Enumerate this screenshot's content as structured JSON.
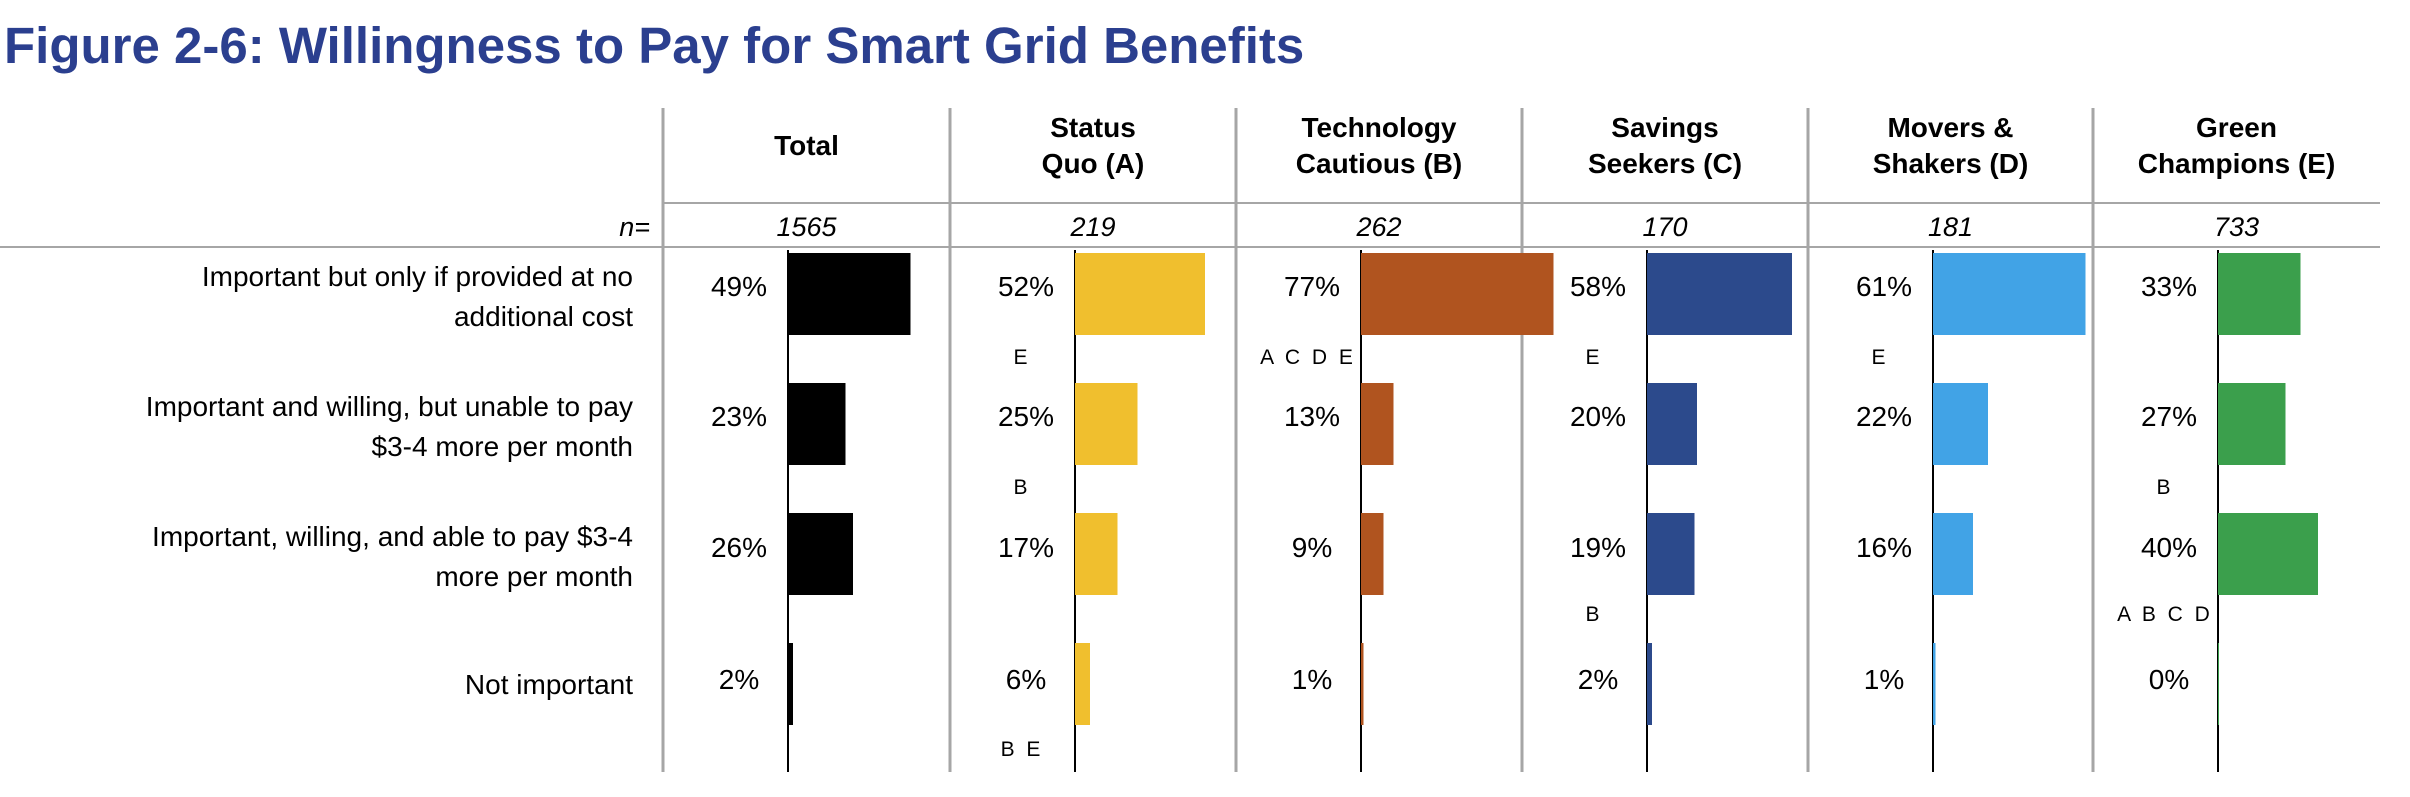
{
  "title": "Figure 2-6: Willingness to Pay for Smart Grid Benefits",
  "colors": {
    "title": "#2b3f8f",
    "grid": "#a6a6a6",
    "axis": "#000000"
  },
  "n_label": "n=",
  "chart_data": {
    "type": "bar",
    "orientation": "horizontal",
    "title": "Figure 2-6: Willingness to Pay for Smart Grid Benefits",
    "value_unit": "%",
    "xlim": [
      0,
      100
    ],
    "grid": false,
    "categories": [
      [
        "Important but only if provided at no",
        "additional cost"
      ],
      [
        "Important and willing, but unable to pay",
        "$3-4 more per month"
      ],
      [
        "Important, willing, and able to pay $3-4",
        "more per month"
      ],
      [
        "Not important"
      ]
    ],
    "series": [
      {
        "name": [
          "Total"
        ],
        "n": "1565",
        "color": "#000000",
        "values": [
          49,
          23,
          26,
          2
        ],
        "labels": [
          "49%",
          "23%",
          "26%",
          "2%"
        ],
        "sig": [
          "",
          "",
          "",
          ""
        ]
      },
      {
        "name": [
          "Status",
          "Quo (A)"
        ],
        "n": "219",
        "color": "#f0bf2e",
        "values": [
          52,
          25,
          17,
          6
        ],
        "labels": [
          "52%",
          "25%",
          "17%",
          "6%"
        ],
        "sig": [
          "E",
          "B",
          "",
          "B E"
        ]
      },
      {
        "name": [
          "Technology",
          "Cautious (B)"
        ],
        "n": "262",
        "color": "#b0541f",
        "values": [
          77,
          13,
          9,
          1
        ],
        "labels": [
          "77%",
          "13%",
          "9%",
          "1%"
        ],
        "sig": [
          "A C D E",
          "",
          "",
          ""
        ]
      },
      {
        "name": [
          "Savings",
          "Seekers (C)"
        ],
        "n": "170",
        "color": "#2c4a8c",
        "values": [
          58,
          20,
          19,
          2
        ],
        "labels": [
          "58%",
          "20%",
          "19%",
          "2%"
        ],
        "sig": [
          "E",
          "",
          "B",
          ""
        ]
      },
      {
        "name": [
          "Movers &",
          "Shakers (D)"
        ],
        "n": "181",
        "color": "#41a3e6",
        "values": [
          61,
          22,
          16,
          1
        ],
        "labels": [
          "61%",
          "22%",
          "16%",
          "1%"
        ],
        "sig": [
          "E",
          "",
          "",
          ""
        ]
      },
      {
        "name": [
          "Green",
          "Champions (E)"
        ],
        "n": "733",
        "color": "#3b9f4c",
        "values": [
          33,
          27,
          40,
          0
        ],
        "labels": [
          "33%",
          "27%",
          "40%",
          "0%"
        ],
        "sig": [
          "",
          "B",
          "A B C D",
          ""
        ]
      }
    ]
  }
}
